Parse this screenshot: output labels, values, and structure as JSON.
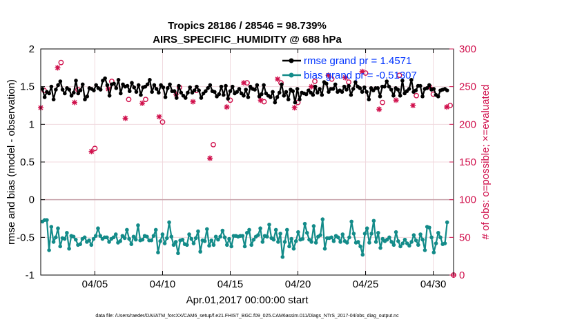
{
  "chart_data": {
    "type": "line",
    "title": "Tropics 28186 / 28546 = 98.739%",
    "subtitle": "AIRS_SPECIFIC_HUMIDITY @ 688 hPa",
    "xlabel": "Apr.01,2017 00:00:00 start",
    "ylabel": "rmse and bias (model - observation)",
    "ylabel_right": "# of obs: o=possible; ×=evaluated",
    "footer": "data file: /Users/raeder/DAI/ATM_forcXX/CAM6_setup/f.e21.FHIST_BGC.f09_025.CAM6assim.011/Diags_NTrS_2017-04/obs_diag_output.nc",
    "xlim": [
      1,
      31.5
    ],
    "ylim": [
      -1,
      2
    ],
    "ylim_right": [
      0,
      300
    ],
    "xticks": [
      5,
      10,
      15,
      20,
      25,
      30
    ],
    "xtick_labels": [
      "04/05",
      "04/10",
      "04/15",
      "04/20",
      "04/25",
      "04/30"
    ],
    "yticks": [
      -1,
      -0.5,
      0,
      0.5,
      1,
      1.5,
      2
    ],
    "ytick_labels": [
      "-1",
      "-0.5",
      "0",
      "0.5",
      "1",
      "1.5",
      "2"
    ],
    "yticks_right": [
      0,
      50,
      100,
      150,
      200,
      250,
      300
    ],
    "ytick_labels_right": [
      "0",
      "50",
      "100",
      "150",
      "200",
      "250",
      "300"
    ],
    "grid": true,
    "legend_position": "top-right",
    "series": [
      {
        "name": "rmse",
        "legend": "rmse grand pr = 1.4571",
        "color": "#000000",
        "axis": "left",
        "values": [
          1.47,
          1.36,
          1.43,
          1.41,
          1.5,
          1.33,
          1.46,
          1.52,
          1.57,
          1.46,
          1.41,
          1.48,
          1.46,
          1.38,
          1.42,
          1.58,
          1.41,
          1.45,
          1.53,
          1.33,
          1.37,
          1.48,
          1.47,
          1.45,
          1.52,
          1.48,
          1.46,
          1.58,
          1.61,
          1.52,
          1.38,
          1.53,
          1.54,
          1.48,
          1.59,
          1.41,
          1.53,
          1.5,
          1.51,
          1.44,
          1.55,
          1.49,
          1.43,
          1.52,
          1.39,
          1.49,
          1.5,
          1.53,
          1.59,
          1.43,
          1.52,
          1.47,
          1.42,
          1.52,
          1.49,
          1.36,
          1.48,
          1.53,
          1.44,
          1.44,
          1.35,
          1.51,
          1.42,
          1.38,
          1.35,
          1.42,
          1.49,
          1.42,
          1.45,
          1.5,
          1.45,
          1.35,
          1.41,
          1.44,
          1.48,
          1.52,
          1.44,
          1.43,
          1.37,
          1.4,
          1.5,
          1.39,
          1.51,
          1.34,
          1.44,
          1.5,
          1.41,
          1.43,
          1.47,
          1.41,
          1.38,
          1.46,
          1.36,
          1.5,
          1.47,
          1.46,
          1.52,
          1.37,
          1.4,
          1.52,
          1.41,
          1.38,
          1.36,
          1.43,
          1.29,
          1.36,
          1.42,
          1.53,
          1.38,
          1.43,
          1.33,
          1.46,
          1.44,
          1.29,
          1.47,
          1.33,
          1.42,
          1.41,
          1.4,
          1.45,
          1.42,
          1.39,
          1.5,
          1.42,
          1.47,
          1.39,
          1.56,
          1.54,
          1.43,
          1.47,
          1.47,
          1.53,
          1.43,
          1.45,
          1.43,
          1.5,
          1.46,
          1.51,
          1.39,
          1.47,
          1.56,
          1.5,
          1.48,
          1.43,
          1.49,
          1.43,
          1.33,
          1.48,
          1.45,
          1.48,
          1.48,
          1.37,
          1.5,
          1.5,
          1.57,
          1.5,
          1.46,
          1.38,
          1.48,
          1.46,
          1.38,
          1.58,
          1.41,
          1.44,
          1.47,
          1.59,
          1.43,
          1.45,
          1.51,
          1.51,
          1.37,
          1.47,
          1.48,
          1.52,
          1.46,
          1.47,
          1.39,
          1.37,
          1.45,
          1.46,
          1.47,
          1.45
        ]
      },
      {
        "name": "bias",
        "legend": "bias grand pr = -0.51307",
        "color": "#138b89",
        "axis": "left",
        "values": [
          -0.29,
          -0.27,
          -0.27,
          -0.67,
          -0.36,
          -0.56,
          -0.5,
          -0.38,
          -0.62,
          -0.51,
          -0.52,
          -0.44,
          -0.65,
          -0.48,
          -0.49,
          -0.53,
          -0.6,
          -0.59,
          -0.52,
          -0.5,
          -0.56,
          -0.54,
          -0.6,
          -0.52,
          -0.48,
          -0.38,
          -0.48,
          -0.52,
          -0.5,
          -0.5,
          -0.56,
          -0.52,
          -0.5,
          -0.46,
          -0.57,
          -0.55,
          -0.48,
          -0.51,
          -0.4,
          -0.52,
          -0.59,
          -0.49,
          -0.53,
          -0.34,
          -0.54,
          -0.53,
          -0.48,
          -0.49,
          -0.54,
          -0.54,
          -0.48,
          -0.4,
          -0.7,
          -0.55,
          -0.46,
          -0.58,
          -0.51,
          -0.3,
          -0.49,
          -0.6,
          -0.56,
          -0.71,
          -0.54,
          -0.53,
          -0.59,
          -0.6,
          -0.46,
          -0.52,
          -0.58,
          -0.51,
          -0.42,
          -0.69,
          -0.54,
          -0.55,
          -0.39,
          -0.61,
          -0.54,
          -0.6,
          -0.49,
          -0.53,
          -0.49,
          -0.41,
          -0.5,
          -0.6,
          -0.52,
          -0.62,
          -0.48,
          -0.48,
          -0.49,
          -0.48,
          -0.48,
          -0.62,
          -0.44,
          -0.4,
          -0.6,
          -0.53,
          -0.49,
          -0.47,
          -0.38,
          -0.56,
          -0.48,
          -0.49,
          -0.33,
          -0.51,
          -0.53,
          -0.4,
          -0.56,
          -0.45,
          -0.76,
          -0.56,
          -0.4,
          -0.62,
          -0.52,
          -0.65,
          -0.55,
          -0.43,
          -0.53,
          -0.52,
          -0.32,
          -0.44,
          -0.53,
          -0.56,
          -0.35,
          -0.57,
          -0.49,
          -0.47,
          -0.26,
          -0.65,
          -0.51,
          -0.51,
          -0.5,
          -0.55,
          -0.48,
          -0.5,
          -0.56,
          -0.46,
          -0.55,
          -0.57,
          -0.5,
          -0.29,
          -0.45,
          -0.57,
          -0.56,
          -0.62,
          -0.73,
          -0.45,
          -0.38,
          -0.57,
          -0.45,
          -0.28,
          -0.56,
          -0.44,
          -0.64,
          -0.52,
          -0.55,
          -0.53,
          -0.5,
          -0.56,
          -0.6,
          -0.43,
          -0.55,
          -0.62,
          -0.58,
          -0.53,
          -0.58,
          -0.61,
          -0.56,
          -0.47,
          -0.54,
          -0.6,
          -0.46,
          -0.53,
          -0.67,
          -0.36,
          -0.37,
          -0.5,
          -0.7,
          -0.58,
          -0.44,
          -0.5,
          -0.59,
          -0.58,
          -0.3
        ]
      },
      {
        "name": "possible",
        "marker": "o",
        "color": "#d0104c",
        "axis": "right",
        "x": [
          1.25,
          2.5,
          3.75,
          5,
          6.25,
          7.5,
          8.75,
          10,
          11.25,
          12.5,
          13.75,
          15,
          16.25,
          17.5,
          18.75,
          20,
          21.25,
          22.5,
          23.75,
          25,
          26.25,
          27.5,
          28.75,
          30,
          31.25
        ],
        "values": [
          245,
          282,
          246,
          168,
          257,
          233,
          233,
          203,
          249,
          245,
          173,
          232,
          255,
          230,
          255,
          229,
          257,
          260,
          256,
          268,
          229,
          265,
          238,
          240,
          225
        ]
      },
      {
        "name": "evaluated",
        "marker": "asterisk",
        "color": "#d0104c",
        "axis": "right",
        "x": [
          1,
          2.25,
          3.5,
          4.75,
          6,
          7.25,
          8.5,
          9.75,
          11,
          12.25,
          13.5,
          14.75,
          16,
          17.25,
          18.5,
          19.75,
          21,
          22.25,
          23.5,
          24.75,
          26,
          27.25,
          28.5,
          29.75,
          31
        ],
        "values": [
          222,
          275,
          229,
          164,
          247,
          208,
          228,
          210,
          240,
          230,
          155,
          223,
          255,
          232,
          260,
          222,
          250,
          265,
          262,
          270,
          220,
          232,
          225,
          249,
          223
        ]
      }
    ]
  }
}
